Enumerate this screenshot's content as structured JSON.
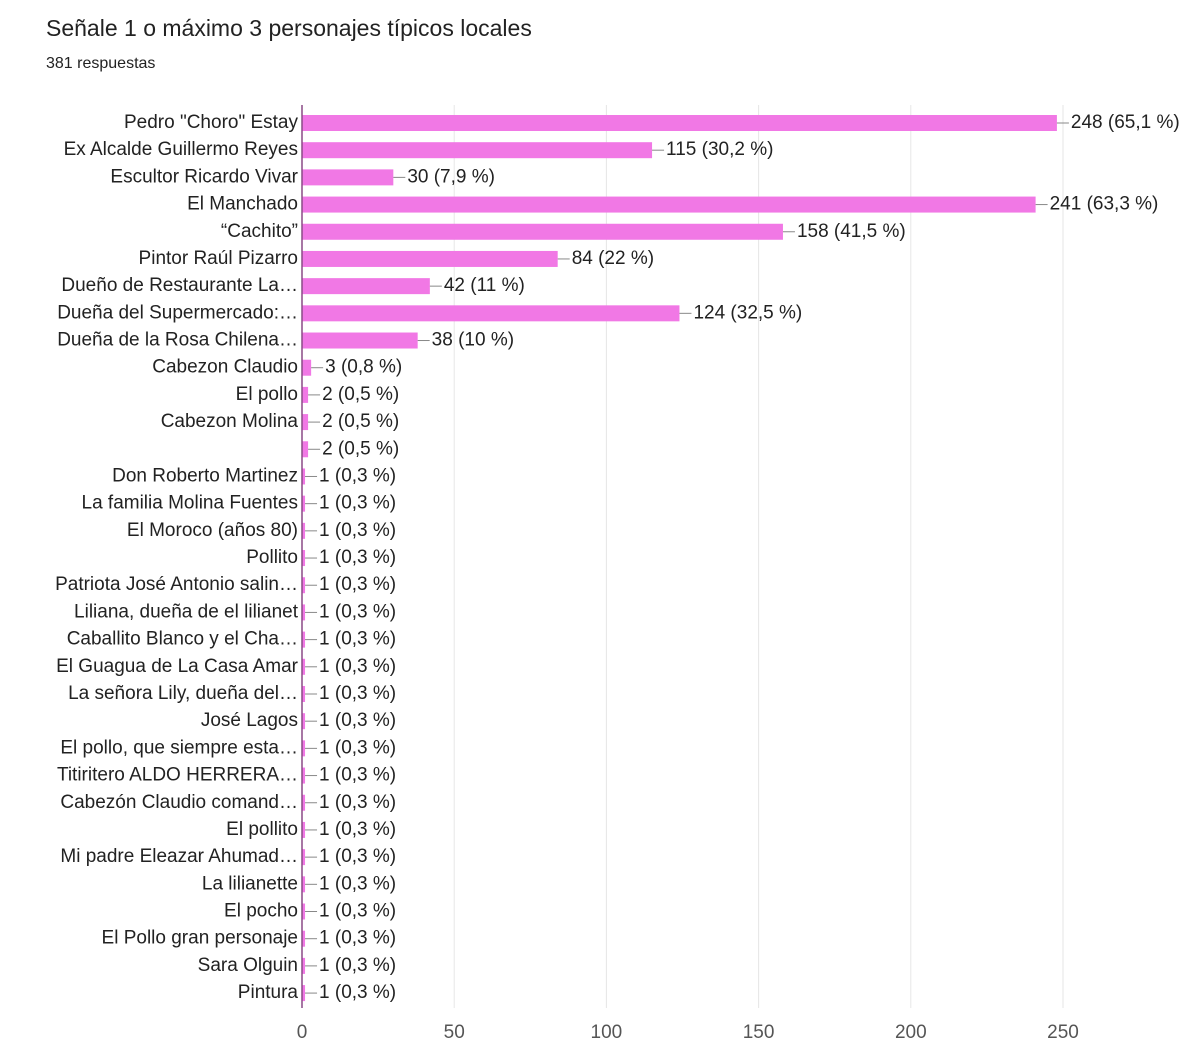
{
  "chart_data": {
    "type": "bar",
    "orientation": "horizontal",
    "title": "Señale 1 o máximo 3 personajes típicos locales",
    "subtitle": "381 respuestas",
    "categories": [
      "Pedro \"Choro\" Estay",
      "Ex Alcalde Guillermo Reyes",
      "Escultor Ricardo Vivar",
      "El Manchado",
      "“Cachito”",
      "Pintor Raúl Pizarro",
      "Dueño de Restaurante La…",
      "Dueña del Supermercado:…",
      "Dueña de la Rosa Chilena…",
      "Cabezon Claudio",
      "El pollo",
      "Cabezon Molina",
      null,
      "Don Roberto Martinez",
      "La familia Molina Fuentes",
      "El Moroco (años 80)",
      "Pollito",
      "Patriota José Antonio salin…",
      "Liliana, dueña de el lilianet",
      "Caballito Blanco y el Cha…",
      "El Guagua de La Casa Amar",
      "La señora Lily, dueña del…",
      "José Lagos",
      "El pollo, que siempre esta…",
      "Titiritero ALDO HERRERA…",
      "Cabezón Claudio comand…",
      "El pollito",
      "Mi padre Eleazar Ahumad…",
      "La lilianette",
      "El pocho",
      "El Pollo gran personaje",
      "Sara Olguin",
      "Pintura"
    ],
    "values": [
      248,
      115,
      30,
      241,
      158,
      84,
      42,
      124,
      38,
      3,
      2,
      2,
      2,
      1,
      1,
      1,
      1,
      1,
      1,
      1,
      1,
      1,
      1,
      1,
      1,
      1,
      1,
      1,
      1,
      1,
      1,
      1,
      1
    ],
    "value_labels": [
      "248 (65,1 %)",
      "115 (30,2 %)",
      "30 (7,9 %)",
      "241 (63,3 %)",
      "158 (41,5 %)",
      "84 (22 %)",
      "42 (11 %)",
      "124 (32,5 %)",
      "38 (10 %)",
      "3 (0,8 %)",
      "2 (0,5 %)",
      "2 (0,5 %)",
      "2 (0,5 %)",
      "1 (0,3 %)",
      "1 (0,3 %)",
      "1 (0,3 %)",
      "1 (0,3 %)",
      "1 (0,3 %)",
      "1 (0,3 %)",
      "1 (0,3 %)",
      "1 (0,3 %)",
      "1 (0,3 %)",
      "1 (0,3 %)",
      "1 (0,3 %)",
      "1 (0,3 %)",
      "1 (0,3 %)",
      "1 (0,3 %)",
      "1 (0,3 %)",
      "1 (0,3 %)",
      "1 (0,3 %)",
      "1 (0,3 %)",
      "1 (0,3 %)",
      "1 (0,3 %)"
    ],
    "color": "#f178e5",
    "xlim": [
      0,
      290
    ],
    "xticks": [
      0,
      50,
      100,
      150,
      200,
      250
    ],
    "grid": true
  }
}
